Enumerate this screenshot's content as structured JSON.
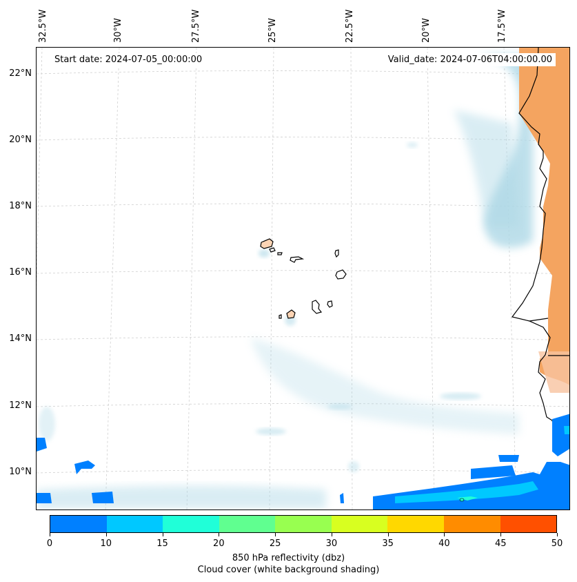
{
  "map": {
    "start_date": "Start date: 2024-07-05_00:00:00",
    "valid_date": "Valid_date: 2024-07-06T04:00:00.00",
    "lon_labels": [
      "32.5°W",
      "30°W",
      "27.5°W",
      "25°W",
      "22.5°W",
      "20°W",
      "17.5°W"
    ],
    "lat_labels": [
      "22°N",
      "20°N",
      "18°N",
      "16°N",
      "14°N",
      "12°N",
      "10°N"
    ],
    "land_color": "#f4a460",
    "cloud_color": "#add8e6",
    "coast_color": "#000000"
  },
  "colorbar": {
    "ticks": [
      "0",
      "10",
      "15",
      "20",
      "25",
      "30",
      "35",
      "40",
      "45",
      "50"
    ],
    "colors": [
      "#0080ff",
      "#00c8ff",
      "#20ffd8",
      "#60ff90",
      "#98ff50",
      "#d8ff20",
      "#ffd800",
      "#ff8c00",
      "#ff5000"
    ],
    "label_line1": "850 hPa reflectivity (dbz)",
    "label_line2": "Cloud cover (white background shading)"
  }
}
